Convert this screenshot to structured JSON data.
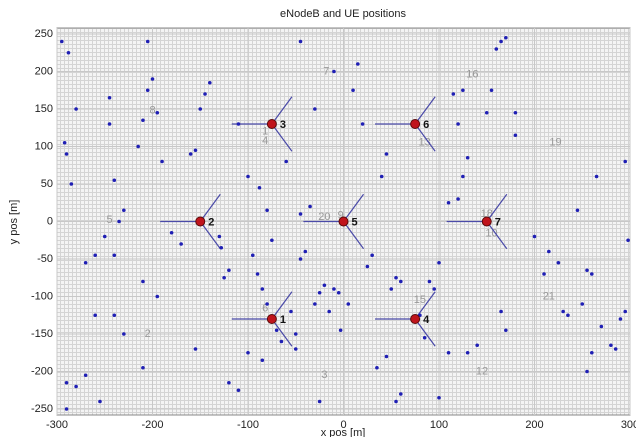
{
  "chart_data": {
    "type": "scatter",
    "title": "eNodeB and UE positions",
    "x_label": "x pos [m]",
    "y_label": "y pos [m]",
    "xlim": [
      -300,
      300
    ],
    "ylim": [
      -258,
      258
    ],
    "xticks": [
      -300,
      -200,
      -100,
      0,
      100,
      200,
      300
    ],
    "yticks": [
      -250,
      -200,
      -150,
      -100,
      -50,
      0,
      50,
      100,
      150,
      200,
      250
    ],
    "grid": true,
    "ue": {
      "color": "#1f1fb4",
      "x": [
        -295,
        -288,
        -280,
        -292,
        -290,
        -285,
        -245,
        -245,
        -240,
        -235,
        -230,
        -215,
        -210,
        -205,
        -200,
        -205,
        -195,
        -190,
        -180,
        -170,
        -160,
        -155,
        -150,
        -145,
        -140,
        -130,
        -128,
        -125,
        -120,
        -110,
        -100,
        -95,
        -90,
        -88,
        -85,
        -80,
        -75,
        -70,
        -65,
        -60,
        -55,
        -50,
        -50,
        -45,
        -45,
        -40,
        -35,
        -30,
        -25,
        -20,
        -15,
        -10,
        -5,
        5,
        -3,
        -25,
        -45,
        -30,
        -10,
        10,
        15,
        20,
        25,
        30,
        40,
        45,
        50,
        55,
        60,
        45,
        35,
        55,
        60,
        90,
        95,
        80,
        85,
        100,
        110,
        120,
        125,
        130,
        120,
        115,
        125,
        150,
        165,
        170,
        160,
        155,
        180,
        180,
        200,
        210,
        215,
        225,
        230,
        235,
        245,
        255,
        260,
        270,
        280,
        285,
        290,
        295,
        298,
        295,
        265,
        255,
        250,
        260,
        170,
        165,
        140,
        130,
        110,
        100,
        -210,
        -230,
        -260,
        -270,
        -290,
        -280,
        -290,
        -255,
        -155,
        -120,
        -110,
        -100,
        -85,
        -80,
        -240,
        -210,
        -195,
        -240,
        -260,
        -270,
        -250
      ],
      "y": [
        240,
        225,
        150,
        105,
        90,
        50,
        165,
        130,
        55,
        0,
        15,
        100,
        135,
        175,
        190,
        240,
        145,
        80,
        -15,
        -30,
        90,
        95,
        150,
        170,
        185,
        -20,
        -35,
        -75,
        -65,
        130,
        60,
        -45,
        -70,
        45,
        -90,
        15,
        -25,
        -145,
        -160,
        80,
        -120,
        -150,
        -170,
        -50,
        10,
        -40,
        20,
        -110,
        -95,
        -85,
        -120,
        -90,
        -95,
        -110,
        -145,
        -240,
        240,
        150,
        200,
        175,
        210,
        130,
        -60,
        -45,
        60,
        90,
        -90,
        -75,
        -80,
        -180,
        -195,
        -240,
        -230,
        -80,
        -90,
        -125,
        -155,
        -55,
        25,
        30,
        60,
        85,
        130,
        170,
        175,
        145,
        240,
        245,
        230,
        175,
        145,
        115,
        -20,
        -70,
        -40,
        -55,
        -120,
        -125,
        15,
        -65,
        -70,
        -140,
        -165,
        -170,
        -130,
        -120,
        -25,
        80,
        60,
        -200,
        -110,
        -175,
        -145,
        -120,
        -165,
        -175,
        -175,
        -235,
        -195,
        -150,
        -125,
        -205,
        -215,
        -220,
        -250,
        -240,
        -170,
        -215,
        -225,
        -175,
        -185,
        -110,
        -125,
        -80,
        -100,
        -45,
        -45,
        -55,
        -20
      ]
    },
    "enodebs": {
      "color": "#c0141c",
      "labels": [
        "1",
        "2",
        "3",
        "4",
        "5",
        "6",
        "7"
      ],
      "x": [
        -75,
        -150,
        -75,
        75,
        0,
        75,
        150
      ],
      "y": [
        -130,
        0,
        130,
        -130,
        0,
        130,
        0
      ]
    },
    "cell_labels": [
      {
        "text": "8",
        "x": -200,
        "y": 148
      },
      {
        "text": "7",
        "x": -18,
        "y": 200
      },
      {
        "text": "16",
        "x": 135,
        "y": 196
      },
      {
        "text": "5",
        "x": -245,
        "y": 2
      },
      {
        "text": "1",
        "x": -82,
        "y": 120
      },
      {
        "text": "4",
        "x": -82,
        "y": 107
      },
      {
        "text": "13",
        "x": 85,
        "y": 105
      },
      {
        "text": "19",
        "x": 222,
        "y": 105
      },
      {
        "text": "20",
        "x": -20,
        "y": 6
      },
      {
        "text": "9",
        "x": -3,
        "y": 8
      },
      {
        "text": "18",
        "x": 150,
        "y": 10
      },
      {
        "text": "10",
        "x": 155,
        "y": -16
      },
      {
        "text": "6",
        "x": -82,
        "y": -116
      },
      {
        "text": "15",
        "x": 80,
        "y": -105
      },
      {
        "text": "21",
        "x": 215,
        "y": -100
      },
      {
        "text": "2",
        "x": -205,
        "y": -150
      },
      {
        "text": "3",
        "x": -20,
        "y": -205
      },
      {
        "text": "12",
        "x": 145,
        "y": -200
      }
    ]
  }
}
